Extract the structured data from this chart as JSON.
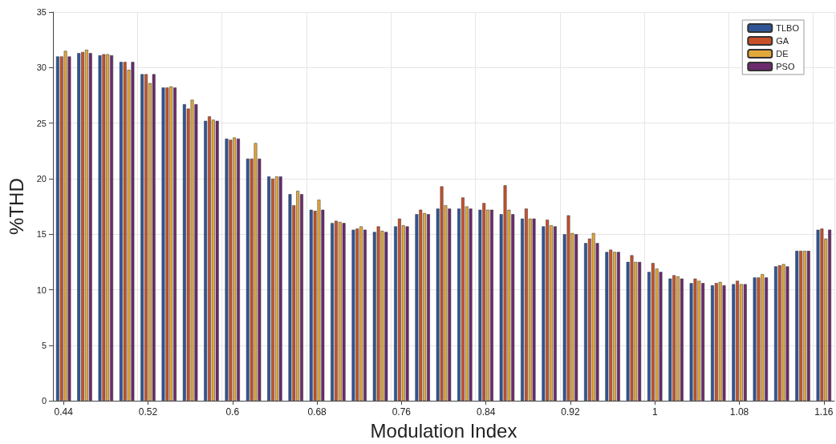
{
  "chart_data": {
    "type": "bar",
    "xlabel": "Modulation Index",
    "ylabel": "%THD",
    "categories": [
      "0.44",
      null,
      null,
      null,
      "0.52",
      null,
      null,
      null,
      "0.6",
      null,
      null,
      null,
      "0.68",
      null,
      null,
      null,
      "0.76",
      null,
      null,
      null,
      "0.84",
      null,
      null,
      null,
      "0.92",
      null,
      null,
      null,
      "1",
      null,
      null,
      null,
      "1.08",
      null,
      null,
      null,
      "1.16"
    ],
    "series": [
      {
        "name": "TLBO",
        "color": "#2f5597",
        "values": [
          31.0,
          31.3,
          31.1,
          30.5,
          29.4,
          28.2,
          26.7,
          25.2,
          23.6,
          21.8,
          20.2,
          18.6,
          17.2,
          16.0,
          15.4,
          15.2,
          15.7,
          16.8,
          17.3,
          17.3,
          17.2,
          16.8,
          16.4,
          15.7,
          15.0,
          14.2,
          13.4,
          12.5,
          11.6,
          11.0,
          10.6,
          10.4,
          10.5,
          11.1,
          12.1,
          13.5,
          15.4
        ]
      },
      {
        "name": "GA",
        "color": "#c8502a",
        "values": [
          31.0,
          31.4,
          31.2,
          30.5,
          29.4,
          28.2,
          26.3,
          25.6,
          23.5,
          21.8,
          20.0,
          17.6,
          17.1,
          16.2,
          15.5,
          15.7,
          16.4,
          17.2,
          19.3,
          18.3,
          17.8,
          19.4,
          17.3,
          16.3,
          16.7,
          14.6,
          13.6,
          13.1,
          12.4,
          11.3,
          11.0,
          10.6,
          10.8,
          11.1,
          12.2,
          13.5,
          15.5
        ]
      },
      {
        "name": "DE",
        "color": "#e3a83a",
        "values": [
          31.5,
          31.6,
          31.2,
          29.8,
          28.6,
          28.3,
          27.1,
          25.3,
          23.7,
          23.2,
          20.2,
          18.9,
          18.1,
          16.1,
          15.7,
          15.3,
          15.8,
          16.9,
          17.6,
          17.5,
          17.2,
          17.2,
          16.4,
          15.8,
          15.1,
          15.1,
          13.4,
          12.5,
          11.9,
          11.2,
          10.8,
          10.7,
          10.5,
          11.4,
          12.3,
          13.5,
          14.6
        ]
      },
      {
        "name": "PSO",
        "color": "#6b2a6e",
        "values": [
          31.0,
          31.3,
          31.1,
          30.5,
          29.4,
          28.2,
          26.7,
          25.2,
          23.6,
          21.8,
          20.2,
          18.6,
          17.2,
          16.0,
          15.4,
          15.2,
          15.7,
          16.8,
          17.3,
          17.3,
          17.2,
          16.8,
          16.4,
          15.7,
          15.0,
          14.2,
          13.4,
          12.5,
          11.6,
          11.0,
          10.6,
          10.4,
          10.5,
          11.1,
          12.1,
          13.5,
          15.4
        ]
      }
    ],
    "ylim": [
      0,
      35
    ],
    "yticks": [
      0,
      5,
      10,
      15,
      20,
      25,
      30,
      35
    ],
    "grid": true,
    "legend": "top right"
  }
}
